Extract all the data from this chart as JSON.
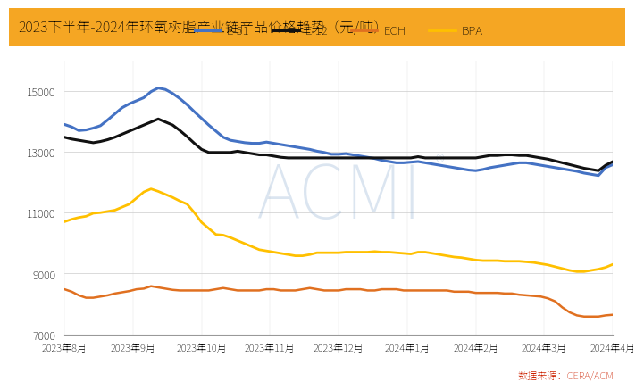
{
  "title": "2023下半年-2024年环氧树脂产业链产品价格趋势（元/吨）",
  "title_bg_color": "#F5A623",
  "title_text_color": "#000000",
  "source_text": "数据来源：CERA/ACMI",
  "ylim": [
    7000,
    16000
  ],
  "yticks": [
    7000,
    9000,
    11000,
    13000,
    15000
  ],
  "bg_color": "#ffffff",
  "x_labels": [
    "2023年8月",
    "2023年9月",
    "2023年10月",
    "2023年11月",
    "2023年12月",
    "2024年1月",
    "2024年2月",
    "2024年3月",
    "2024年4月"
  ],
  "series": {
    "E-51": {
      "color": "#4472C4",
      "linewidth": 2.2,
      "values": [
        13900,
        13820,
        13700,
        13720,
        13780,
        13860,
        14050,
        14250,
        14450,
        14580,
        14680,
        14780,
        14980,
        15100,
        15050,
        14920,
        14750,
        14550,
        14320,
        14100,
        13880,
        13680,
        13480,
        13380,
        13340,
        13300,
        13280,
        13280,
        13320,
        13280,
        13240,
        13200,
        13160,
        13120,
        13080,
        13020,
        12980,
        12920,
        12920,
        12940,
        12900,
        12860,
        12820,
        12780,
        12720,
        12680,
        12640,
        12640,
        12660,
        12680,
        12640,
        12600,
        12560,
        12520,
        12480,
        12440,
        12400,
        12380,
        12420,
        12480,
        12520,
        12560,
        12600,
        12640,
        12640,
        12600,
        12560,
        12520,
        12480,
        12440,
        12400,
        12360,
        12300,
        12260,
        12220,
        12480,
        12580
      ]
    },
    "E-12": {
      "color": "#111111",
      "linewidth": 2.2,
      "values": [
        13480,
        13420,
        13380,
        13340,
        13300,
        13340,
        13400,
        13480,
        13580,
        13680,
        13780,
        13880,
        13980,
        14080,
        13980,
        13880,
        13700,
        13500,
        13280,
        13080,
        12980,
        12980,
        12980,
        12980,
        13020,
        12980,
        12940,
        12900,
        12900,
        12860,
        12820,
        12800,
        12800,
        12800,
        12800,
        12800,
        12800,
        12800,
        12800,
        12800,
        12800,
        12800,
        12800,
        12800,
        12800,
        12800,
        12800,
        12800,
        12800,
        12840,
        12800,
        12800,
        12800,
        12800,
        12800,
        12800,
        12800,
        12800,
        12840,
        12880,
        12880,
        12900,
        12900,
        12880,
        12880,
        12840,
        12800,
        12760,
        12700,
        12640,
        12580,
        12520,
        12460,
        12420,
        12380,
        12560,
        12680
      ]
    },
    "ECH": {
      "color": "#E07020",
      "linewidth": 1.8,
      "values": [
        8480,
        8400,
        8280,
        8200,
        8200,
        8240,
        8280,
        8340,
        8380,
        8420,
        8480,
        8500,
        8580,
        8540,
        8500,
        8460,
        8440,
        8440,
        8440,
        8440,
        8440,
        8480,
        8520,
        8480,
        8440,
        8440,
        8440,
        8440,
        8480,
        8480,
        8440,
        8440,
        8440,
        8480,
        8520,
        8480,
        8440,
        8440,
        8440,
        8480,
        8480,
        8480,
        8440,
        8440,
        8480,
        8480,
        8480,
        8440,
        8440,
        8440,
        8440,
        8440,
        8440,
        8440,
        8400,
        8400,
        8400,
        8360,
        8360,
        8360,
        8360,
        8340,
        8340,
        8300,
        8280,
        8260,
        8240,
        8180,
        8080,
        7880,
        7720,
        7620,
        7580,
        7580,
        7580,
        7620,
        7640
      ]
    },
    "BPA": {
      "color": "#FFC000",
      "linewidth": 2.0,
      "values": [
        10700,
        10780,
        10840,
        10880,
        10980,
        11000,
        11040,
        11080,
        11180,
        11280,
        11480,
        11680,
        11780,
        11700,
        11600,
        11500,
        11380,
        11280,
        11000,
        10680,
        10480,
        10280,
        10260,
        10180,
        10080,
        9980,
        9880,
        9780,
        9740,
        9700,
        9660,
        9620,
        9580,
        9580,
        9620,
        9680,
        9680,
        9680,
        9680,
        9700,
        9700,
        9700,
        9700,
        9720,
        9700,
        9700,
        9680,
        9660,
        9640,
        9700,
        9700,
        9660,
        9620,
        9580,
        9540,
        9520,
        9480,
        9440,
        9420,
        9420,
        9420,
        9400,
        9400,
        9400,
        9380,
        9360,
        9320,
        9280,
        9220,
        9160,
        9100,
        9060,
        9060,
        9100,
        9140,
        9200,
        9300
      ]
    }
  }
}
